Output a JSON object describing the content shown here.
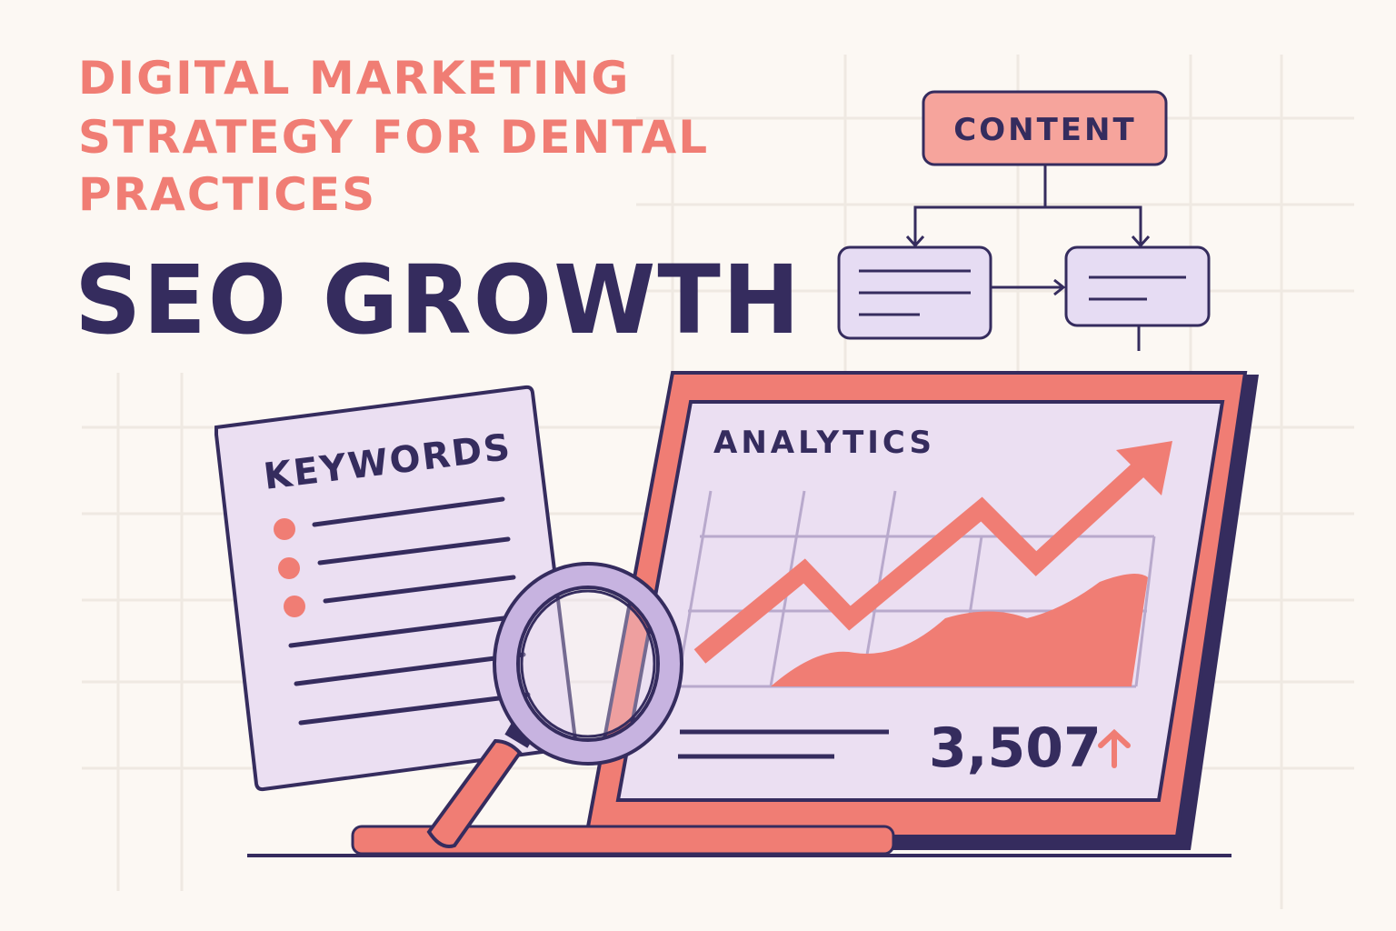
{
  "header": {
    "subtitle_lines": [
      "DIGITAL MARKETING",
      "STRATEGY FOR DENTAL",
      "PRACTICES"
    ],
    "title": "SEO GROWTH"
  },
  "flowchart": {
    "top_box_label": "CONTENT"
  },
  "keywords_doc": {
    "title": "KEYWORDS"
  },
  "laptop": {
    "screen_title": "ANALYTICS",
    "metric_value": "3,507",
    "metric_trend_icon": "arrow-up-icon"
  },
  "colors": {
    "background": "#fcf8f3",
    "coral": "#f07d74",
    "navy": "#352c5e",
    "lavender": "#ebdff2",
    "grid": "#efe9e2"
  }
}
